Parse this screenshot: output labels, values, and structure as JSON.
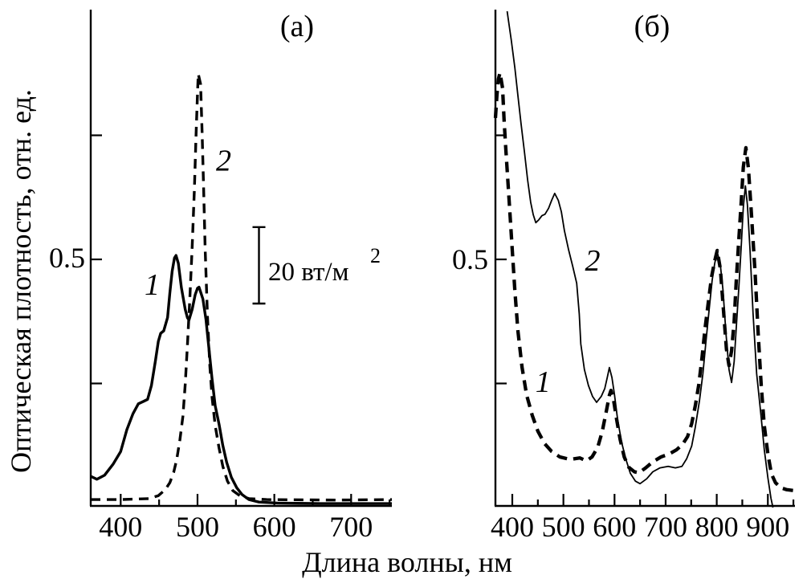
{
  "figure": {
    "description": "Two-panel absorption spectra figure",
    "line_color": "#000000",
    "background": "#ffffff"
  },
  "chart_data": [
    {
      "id": "a",
      "type": "line",
      "panel_label": "(а)",
      "xlabel": "Длина волны, нм",
      "ylabel": "Оптическая плотность, отн. ед.",
      "xlim": [
        361,
        753
      ],
      "ylim": [
        0,
        1.0
      ],
      "grid": false,
      "legend": "none",
      "xticks_major": [
        400,
        500,
        600,
        700
      ],
      "xticks_minor": [
        450,
        550,
        650,
        750
      ],
      "yticks": [
        0.25,
        0.5,
        0.75
      ],
      "ytick_labels": [
        {
          "value": 0.5,
          "label": "0.5"
        }
      ],
      "scalebar": {
        "x": 580,
        "y_top": 0.565,
        "y_bottom": 0.411,
        "label": "20 вт/м",
        "exponent": "2"
      },
      "curve_labels": [
        {
          "text": "1",
          "x": 441,
          "y": 0.45
        },
        {
          "text": "2",
          "x": 534,
          "y": 0.7
        }
      ],
      "series": [
        {
          "name": "1",
          "style": "solid",
          "width": 3.4,
          "points": [
            [
              361,
              0.063
            ],
            [
              369,
              0.057
            ],
            [
              379,
              0.065
            ],
            [
              390,
              0.087
            ],
            [
              400,
              0.113
            ],
            [
              408,
              0.157
            ],
            [
              416,
              0.189
            ],
            [
              423,
              0.209
            ],
            [
              430,
              0.214
            ],
            [
              435,
              0.218
            ],
            [
              440,
              0.246
            ],
            [
              445,
              0.294
            ],
            [
              449,
              0.335
            ],
            [
              452,
              0.351
            ],
            [
              456,
              0.356
            ],
            [
              461,
              0.383
            ],
            [
              464,
              0.432
            ],
            [
              467,
              0.476
            ],
            [
              470,
              0.503
            ],
            [
              472,
              0.508
            ],
            [
              475,
              0.492
            ],
            [
              479,
              0.443
            ],
            [
              484,
              0.399
            ],
            [
              487,
              0.382
            ],
            [
              489,
              0.378
            ],
            [
              493,
              0.399
            ],
            [
              497,
              0.429
            ],
            [
              500,
              0.442
            ],
            [
              502,
              0.444
            ],
            [
              507,
              0.42
            ],
            [
              511,
              0.379
            ],
            [
              515,
              0.319
            ],
            [
              519,
              0.259
            ],
            [
              523,
              0.205
            ],
            [
              528,
              0.168
            ],
            [
              533,
              0.125
            ],
            [
              538,
              0.091
            ],
            [
              544,
              0.061
            ],
            [
              551,
              0.04
            ],
            [
              558,
              0.026
            ],
            [
              567,
              0.016
            ],
            [
              580,
              0.011
            ],
            [
              604,
              0.009
            ],
            [
              660,
              0.008
            ],
            [
              753,
              0.008
            ]
          ]
        },
        {
          "name": "2",
          "style": "dashed",
          "width": 3.4,
          "dash": [
            12,
            8
          ],
          "points": [
            [
              361,
              0.016
            ],
            [
              400,
              0.016
            ],
            [
              437,
              0.018
            ],
            [
              449,
              0.024
            ],
            [
              458,
              0.036
            ],
            [
              464,
              0.05
            ],
            [
              469,
              0.071
            ],
            [
              473,
              0.097
            ],
            [
              477,
              0.136
            ],
            [
              481,
              0.184
            ],
            [
              484,
              0.249
            ],
            [
              487,
              0.33
            ],
            [
              490,
              0.421
            ],
            [
              493,
              0.524
            ],
            [
              496,
              0.642
            ],
            [
              498,
              0.748
            ],
            [
              500,
              0.836
            ],
            [
              501,
              0.874
            ],
            [
              504,
              0.853
            ],
            [
              506,
              0.756
            ],
            [
              508,
              0.642
            ],
            [
              510,
              0.521
            ],
            [
              513,
              0.384
            ],
            [
              516,
              0.286
            ],
            [
              519,
              0.222
            ],
            [
              523,
              0.165
            ],
            [
              528,
              0.12
            ],
            [
              533,
              0.083
            ],
            [
              539,
              0.053
            ],
            [
              546,
              0.034
            ],
            [
              555,
              0.024
            ],
            [
              567,
              0.018
            ],
            [
              590,
              0.016
            ],
            [
              680,
              0.015
            ],
            [
              753,
              0.016
            ]
          ]
        }
      ]
    },
    {
      "id": "b",
      "type": "line",
      "panel_label": "(б)",
      "xlabel": "Длина волны, нм",
      "ylabel": "Оптическая плотность, отн. ед.",
      "xlim": [
        367,
        953
      ],
      "ylim": [
        0,
        1.0
      ],
      "grid": false,
      "legend": "none",
      "xticks_major": [
        400,
        500,
        600,
        700,
        800,
        900
      ],
      "xticks_minor": [
        450,
        550,
        650,
        750,
        850,
        950
      ],
      "yticks": [
        0.25,
        0.5,
        0.75
      ],
      "ytick_labels": [
        {
          "value": 0.5,
          "label": "0.5"
        }
      ],
      "curve_labels": [
        {
          "text": "1",
          "x": 460,
          "y": 0.254
        },
        {
          "text": "2",
          "x": 557,
          "y": 0.498
        }
      ],
      "series": [
        {
          "name": "1",
          "style": "dashed",
          "width": 4.3,
          "dash": [
            13,
            8
          ],
          "points": [
            [
              367,
              0.785
            ],
            [
              370,
              0.832
            ],
            [
              373,
              0.864
            ],
            [
              376,
              0.876
            ],
            [
              381,
              0.845
            ],
            [
              384,
              0.78
            ],
            [
              387,
              0.728
            ],
            [
              394,
              0.615
            ],
            [
              400,
              0.518
            ],
            [
              405,
              0.437
            ],
            [
              411,
              0.356
            ],
            [
              419,
              0.283
            ],
            [
              428,
              0.227
            ],
            [
              439,
              0.186
            ],
            [
              450,
              0.154
            ],
            [
              463,
              0.129
            ],
            [
              477,
              0.113
            ],
            [
              493,
              0.102
            ],
            [
              513,
              0.097
            ],
            [
              532,
              0.1
            ],
            [
              545,
              0.094
            ],
            [
              556,
              0.102
            ],
            [
              567,
              0.121
            ],
            [
              576,
              0.153
            ],
            [
              584,
              0.194
            ],
            [
              590,
              0.226
            ],
            [
              593,
              0.236
            ],
            [
              598,
              0.218
            ],
            [
              604,
              0.178
            ],
            [
              611,
              0.137
            ],
            [
              619,
              0.102
            ],
            [
              628,
              0.081
            ],
            [
              639,
              0.072
            ],
            [
              648,
              0.07
            ],
            [
              661,
              0.08
            ],
            [
              675,
              0.092
            ],
            [
              691,
              0.102
            ],
            [
              707,
              0.108
            ],
            [
              721,
              0.116
            ],
            [
              733,
              0.127
            ],
            [
              743,
              0.143
            ],
            [
              751,
              0.169
            ],
            [
              758,
              0.205
            ],
            [
              765,
              0.248
            ],
            [
              771,
              0.301
            ],
            [
              777,
              0.36
            ],
            [
              784,
              0.417
            ],
            [
              790,
              0.465
            ],
            [
              796,
              0.497
            ],
            [
              801,
              0.518
            ],
            [
              807,
              0.481
            ],
            [
              813,
              0.4
            ],
            [
              819,
              0.319
            ],
            [
              824,
              0.286
            ],
            [
              829,
              0.316
            ],
            [
              834,
              0.375
            ],
            [
              838,
              0.453
            ],
            [
              843,
              0.537
            ],
            [
              848,
              0.618
            ],
            [
              852,
              0.686
            ],
            [
              857,
              0.725
            ],
            [
              862,
              0.683
            ],
            [
              868,
              0.589
            ],
            [
              875,
              0.472
            ],
            [
              881,
              0.351
            ],
            [
              887,
              0.246
            ],
            [
              893,
              0.165
            ],
            [
              900,
              0.108
            ],
            [
              907,
              0.068
            ],
            [
              915,
              0.05
            ],
            [
              925,
              0.04
            ],
            [
              937,
              0.036
            ],
            [
              953,
              0.034
            ]
          ]
        },
        {
          "name": "2",
          "style": "solid",
          "width": 1.8,
          "points": [
            [
              390,
              1.0
            ],
            [
              392,
              0.985
            ],
            [
              398,
              0.942
            ],
            [
              405,
              0.886
            ],
            [
              411,
              0.83
            ],
            [
              417,
              0.775
            ],
            [
              424,
              0.714
            ],
            [
              430,
              0.66
            ],
            [
              436,
              0.615
            ],
            [
              441,
              0.59
            ],
            [
              446,
              0.574
            ],
            [
              452,
              0.58
            ],
            [
              458,
              0.588
            ],
            [
              464,
              0.591
            ],
            [
              471,
              0.603
            ],
            [
              477,
              0.619
            ],
            [
              483,
              0.633
            ],
            [
              490,
              0.619
            ],
            [
              496,
              0.596
            ],
            [
              502,
              0.558
            ],
            [
              510,
              0.52
            ],
            [
              518,
              0.487
            ],
            [
              526,
              0.452
            ],
            [
              531,
              0.39
            ],
            [
              534,
              0.33
            ],
            [
              541,
              0.278
            ],
            [
              549,
              0.246
            ],
            [
              557,
              0.224
            ],
            [
              565,
              0.212
            ],
            [
              574,
              0.224
            ],
            [
              581,
              0.24
            ],
            [
              586,
              0.263
            ],
            [
              590,
              0.282
            ],
            [
              595,
              0.262
            ],
            [
              600,
              0.227
            ],
            [
              606,
              0.178
            ],
            [
              614,
              0.131
            ],
            [
              622,
              0.098
            ],
            [
              631,
              0.069
            ],
            [
              641,
              0.053
            ],
            [
              650,
              0.048
            ],
            [
              663,
              0.058
            ],
            [
              675,
              0.072
            ],
            [
              689,
              0.08
            ],
            [
              705,
              0.083
            ],
            [
              719,
              0.08
            ],
            [
              732,
              0.083
            ],
            [
              741,
              0.098
            ],
            [
              751,
              0.124
            ],
            [
              758,
              0.162
            ],
            [
              766,
              0.214
            ],
            [
              773,
              0.27
            ],
            [
              779,
              0.335
            ],
            [
              785,
              0.398
            ],
            [
              791,
              0.458
            ],
            [
              796,
              0.492
            ],
            [
              801,
              0.515
            ],
            [
              807,
              0.489
            ],
            [
              812,
              0.44
            ],
            [
              818,
              0.351
            ],
            [
              824,
              0.278
            ],
            [
              829,
              0.252
            ],
            [
              834,
              0.294
            ],
            [
              838,
              0.359
            ],
            [
              843,
              0.44
            ],
            [
              848,
              0.529
            ],
            [
              852,
              0.605
            ],
            [
              856,
              0.648
            ],
            [
              860,
              0.61
            ],
            [
              865,
              0.521
            ],
            [
              871,
              0.392
            ],
            [
              878,
              0.27
            ],
            [
              887,
              0.181
            ],
            [
              893,
              0.117
            ],
            [
              900,
              0.06
            ],
            [
              906,
              0.019
            ],
            [
              910,
              0.0
            ]
          ]
        }
      ]
    }
  ]
}
